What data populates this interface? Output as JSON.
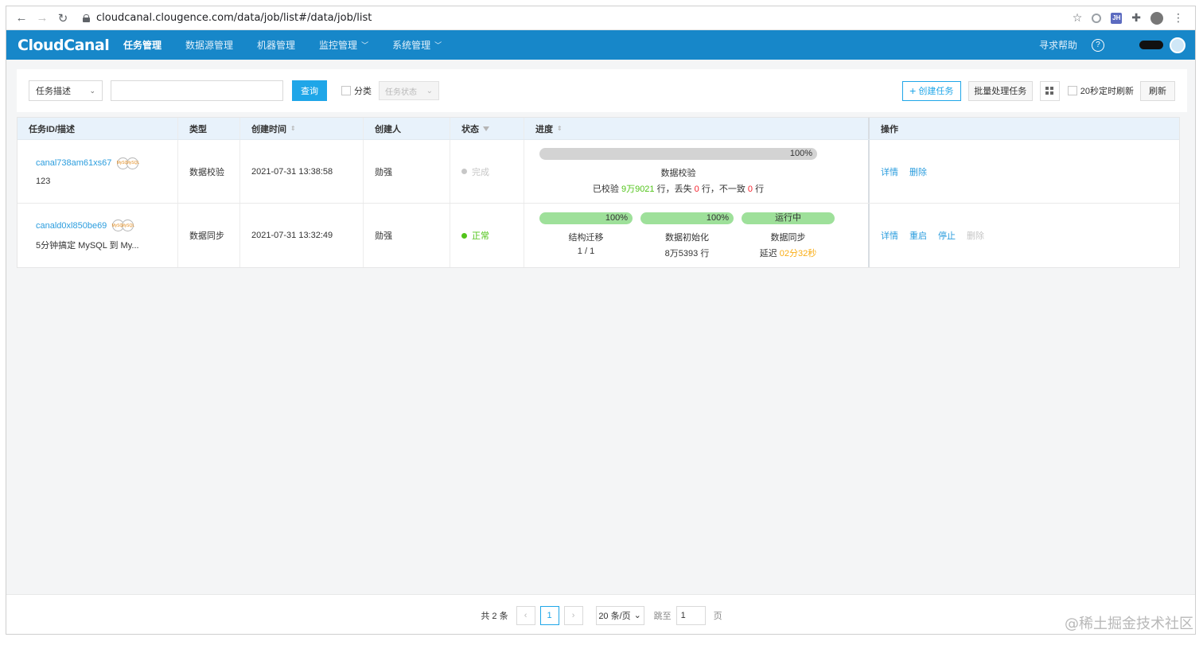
{
  "browser": {
    "url": "cloudcanal.clougence.com/data/job/list#/data/job/list",
    "profile_badge": "JH"
  },
  "header": {
    "logo": "CloudCanal",
    "menu": [
      {
        "label": "任务管理",
        "active": true
      },
      {
        "label": "数据源管理"
      },
      {
        "label": "机器管理"
      },
      {
        "label": "监控管理",
        "dropdown": true
      },
      {
        "label": "系统管理",
        "dropdown": true
      }
    ],
    "help_label": "寻求帮助",
    "help_icon": "?"
  },
  "toolbar": {
    "search_type": "任务描述",
    "search_value": "",
    "query_label": "查询",
    "category_label": "分类",
    "status_placeholder": "任务状态",
    "create_label": "创建任务",
    "batch_label": "批量处理任务",
    "auto_refresh_label": "20秒定时刷新",
    "refresh_label": "刷新"
  },
  "table": {
    "headers": {
      "id": "任务ID/描述",
      "type": "类型",
      "created": "创建时间",
      "creator": "创建人",
      "status": "状态",
      "progress": "进度",
      "actions": "操作"
    },
    "rows": [
      {
        "id": "canal738am61xs67",
        "desc": "123",
        "db_icons": [
          "MySQL",
          "MySQL"
        ],
        "type": "数据校验",
        "created": "2021-07-31 13:38:58",
        "creator": "勋强",
        "status": "完成",
        "progress": {
          "percent": "100%",
          "label": "数据校验",
          "sub_prefix": "已校验 ",
          "checked": "9万9021",
          "sub_mid1": " 行，丢失 ",
          "lost": "0",
          "sub_mid2": " 行，不一致 ",
          "mismatch": "0",
          "sub_suffix": " 行"
        },
        "actions": [
          "详情",
          "删除"
        ]
      },
      {
        "id": "canald0xl850be69",
        "desc": "5分钟搞定 MySQL 到 My...",
        "db_icons": [
          "MySQL",
          "MySQL"
        ],
        "type": "数据同步",
        "created": "2021-07-31 13:32:49",
        "creator": "勋强",
        "status": "正常",
        "stages": [
          {
            "bar": "100%",
            "label": "结构迁移",
            "sub": "1 / 1"
          },
          {
            "bar": "100%",
            "label": "数据初始化",
            "sub": "8万5393 行"
          },
          {
            "bar": "运行中",
            "label": "数据同步",
            "sub_prefix": "延迟 ",
            "delay": "02分32秒"
          }
        ],
        "actions": [
          "详情",
          "重启",
          "停止",
          "删除"
        ]
      }
    ]
  },
  "pager": {
    "total": "共 2 条",
    "prev": "‹",
    "current": "1",
    "next": "›",
    "page_size": "20 条/页",
    "jump_label": "跳至",
    "jump_value": "1",
    "unit": "页"
  },
  "watermark": "@稀土掘金技术社区",
  "colors": {
    "header_bg": "#1787c9",
    "accent": "#1fa6e8",
    "link": "#2b9dde",
    "success": "#52c41a",
    "progress_green": "#9ee09a",
    "progress_grey": "#d3d3d3",
    "warn": "#faad14",
    "error": "#f5222d"
  }
}
